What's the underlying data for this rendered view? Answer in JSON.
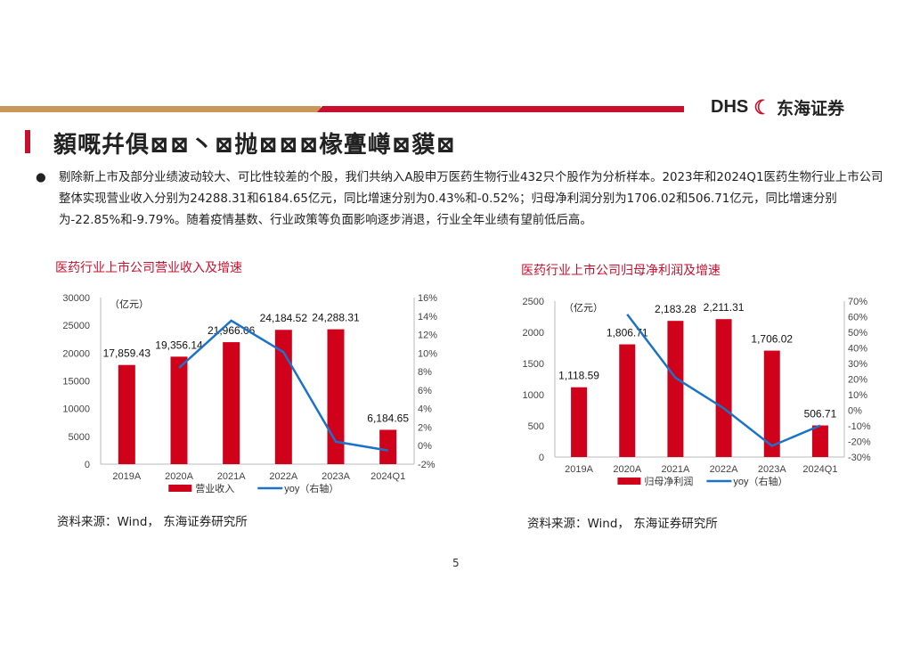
{
  "header": {
    "logo_en": "DHS",
    "logo_cn": "东海证券",
    "title": "顡嘅幷俱⊠⊠丶⊠抛⊠⊠⊠椽亹嶟⊠貘⊠"
  },
  "bullet": "剔除新上市及部分业绩波动较大、可比性较差的个股，我们共纳入A股申万医药生物行业432只个股作为分析样本。2023年和2024Q1医药生物行业上市公司整体实现营业收入分别为24288.31和6184.65亿元，同比增速分别为0.43%和-0.52%；归母净利润分别为1706.02和506.71亿元，同比增速分别为-22.85%和-9.79%。随着疫情基数、行业政策等负面影响逐步消退，行业全年业绩有望前低后高。",
  "page_number": "5",
  "chart_data": [
    {
      "type": "bar",
      "title": "医药行业上市公司营业收入及增速",
      "unit": "（亿元）",
      "categories": [
        "2019A",
        "2020A",
        "2021A",
        "2022A",
        "2023A",
        "2024Q1"
      ],
      "series": [
        {
          "name": "营业收入",
          "type": "bar",
          "axis": "left",
          "values": [
            17859.43,
            19356.14,
            21966.06,
            24184.52,
            24288.31,
            6184.65
          ],
          "labels": [
            "17,859.43",
            "19,356.14",
            "21,966.06",
            "24,184.52",
            "24,288.31",
            "6,184.65"
          ],
          "color": "#d0021b"
        },
        {
          "name": "yoy（右轴）",
          "type": "line",
          "axis": "right",
          "values": [
            null,
            8.4,
            13.5,
            10.1,
            0.43,
            -0.52
          ],
          "color": "#1a73c8"
        }
      ],
      "ylim": [
        0,
        30000
      ],
      "yticks": [
        "0",
        "5000",
        "10000",
        "15000",
        "20000",
        "25000",
        "30000"
      ],
      "y2lim": [
        -2,
        16
      ],
      "y2ticks": [
        "-2%",
        "0%",
        "2%",
        "4%",
        "6%",
        "8%",
        "10%",
        "12%",
        "14%",
        "16%"
      ],
      "source": "资料来源：Wind，  东海证券研究所"
    },
    {
      "type": "bar",
      "title": "医药行业上市公司归母净利润及增速",
      "unit": "（亿元）",
      "categories": [
        "2019A",
        "2020A",
        "2021A",
        "2022A",
        "2023A",
        "2024Q1"
      ],
      "series": [
        {
          "name": "归母净利润",
          "type": "bar",
          "axis": "left",
          "values": [
            1118.59,
            1806.71,
            2183.28,
            2211.31,
            1706.02,
            506.71
          ],
          "labels": [
            "1,118.59",
            "1,806.71",
            "2,183.28",
            "2,211.31",
            "1,706.02",
            "506.71"
          ],
          "color": "#d0021b"
        },
        {
          "name": "yoy（右轴）",
          "type": "line",
          "axis": "right",
          "values": [
            null,
            61.5,
            20.8,
            1.3,
            -22.85,
            -9.79
          ],
          "color": "#1a73c8"
        }
      ],
      "ylim": [
        0,
        2500
      ],
      "yticks": [
        "0",
        "500",
        "1000",
        "1500",
        "2000",
        "2500"
      ],
      "y2lim": [
        -30,
        70
      ],
      "y2ticks": [
        "-30%",
        "-20%",
        "-10%",
        "0%",
        "10%",
        "20%",
        "30%",
        "40%",
        "50%",
        "60%",
        "70%"
      ],
      "source": "资料来源：Wind，  东海证券研究所"
    }
  ]
}
